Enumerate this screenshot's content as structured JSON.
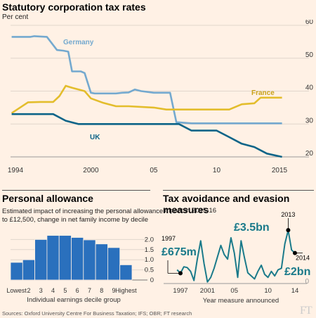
{
  "top": {
    "title": "Statutory corporation tax rates",
    "unit": "Per cent",
    "chart_data": {
      "type": "line",
      "title": "Statutory corporation tax rates",
      "ylabel": "Per cent",
      "ylim": [
        20,
        60
      ],
      "yticks": [
        20,
        30,
        40,
        50,
        60
      ],
      "xticks": [
        "1994",
        "2000",
        "05",
        "10",
        "2015"
      ],
      "grid": true,
      "colors": {
        "Germany": "#74a9cf",
        "France": "#e3bd2c",
        "UK": "#0c6488"
      },
      "series": [
        {
          "name": "Germany",
          "x": [
            1993.7,
            1994.6,
            1995.2,
            1995.5,
            1996.5,
            1997.3,
            1997.8,
            1998.2,
            1998.5,
            1999.2,
            1999.5,
            2000.0,
            2000.3,
            2001.0,
            2001.5,
            2002.0,
            2002.5,
            2003.0,
            2003.5,
            2004.0,
            2005.0,
            2006.0,
            2006.3,
            2006.8,
            2007.0,
            2008.0,
            2010.0,
            2012.0,
            2015.2
          ],
          "values": [
            56.5,
            56.5,
            56.5,
            56.7,
            56.5,
            52.5,
            52.3,
            52.0,
            46.0,
            46.0,
            45.5,
            39.5,
            39.3,
            39.3,
            39.3,
            39.3,
            39.5,
            39.6,
            40.5,
            40.0,
            39.5,
            39.5,
            39.5,
            30.5,
            30.5,
            30.2,
            30.2,
            30.2,
            30.2
          ]
        },
        {
          "name": "France",
          "x": [
            1993.7,
            1995.0,
            1996.0,
            1997.0,
            1997.5,
            1998.0,
            1998.5,
            1999.5,
            2000.0,
            2001.0,
            2002.0,
            2003.0,
            2005.0,
            2006.0,
            2008.0,
            2010.0,
            2011.0,
            2012.0,
            2013.0,
            2013.5,
            2014.0,
            2015.2
          ],
          "values": [
            33.3,
            36.6,
            36.7,
            36.7,
            38.5,
            41.6,
            41.0,
            40.0,
            37.8,
            36.4,
            35.4,
            35.4,
            35.0,
            34.4,
            34.4,
            34.4,
            34.4,
            36.0,
            36.3,
            38.0,
            38.0,
            38.0
          ],
          "label_value": "France"
        },
        {
          "name": "UK",
          "x": [
            1993.7,
            1995.0,
            1996.0,
            1997.0,
            1998.0,
            1999.0,
            2000.0,
            2005.0,
            2007.0,
            2008.0,
            2009.0,
            2010.0,
            2011.0,
            2012.0,
            2013.0,
            2014.0,
            2015.2
          ],
          "values": [
            33.0,
            33.0,
            33.0,
            33.0,
            31.0,
            30.0,
            30.0,
            30.0,
            30.0,
            28.0,
            28.0,
            28.0,
            26.0,
            24.0,
            23.0,
            21.0,
            20.0
          ]
        }
      ]
    }
  },
  "personal": {
    "title": "Personal allowance",
    "desc1": "Estimated impact of increasing the personal allowance",
    "desc2": "to £12,500, change in net family income by decile",
    "xlabel": "Individual earnings decile group",
    "chart_data": {
      "type": "bar",
      "title": "Personal allowance",
      "xlabel": "Individual earnings decile group",
      "categories": [
        "Lowest",
        "2",
        "3",
        "4",
        "5",
        "6",
        "7",
        "8",
        "9",
        "Highest"
      ],
      "values": [
        0.87,
        1.0,
        2.0,
        2.2,
        2.2,
        2.1,
        1.98,
        1.78,
        1.6,
        0.75
      ],
      "ylim": [
        0,
        2.5
      ],
      "yticks": [
        "0",
        "0.5",
        "1.0",
        "1.5",
        "2.0"
      ],
      "color": "#2a70bd",
      "grid": true
    }
  },
  "avoid": {
    "title": "Tax avoidance and evasion measures",
    "desc": "Impact in 2015-16",
    "xlabel": "Year measure announced",
    "ann": {
      "y1997": "1997",
      "v1997": "£675m",
      "y2013": "2013",
      "v2013": "£3.5bn",
      "y2014": "2014",
      "v2014": "£2bn"
    },
    "chart_data": {
      "type": "line",
      "title": "Tax avoidance and evasion measures",
      "xlabel": "Year measure announced",
      "xticks": [
        "1997",
        "2001",
        "05",
        "10",
        "14"
      ],
      "yticks": [
        "0"
      ],
      "x": [
        1996.5,
        1997,
        1997.5,
        1998.0,
        1998.5,
        1999.0,
        1999.5,
        2000.0,
        2000.5,
        2001.0,
        2001.5,
        2002.0,
        2003.0,
        2003.5,
        2004.0,
        2004.5,
        2005.0,
        2005.5,
        2006.0,
        2006.5,
        2007.0,
        2008.0,
        2008.5,
        2009.0,
        2009.5,
        2010.0,
        2010.5,
        2011.0,
        2011.5,
        2012.0,
        2012.5,
        2013.0,
        2013.5,
        2014.0
      ],
      "values": [
        0.9,
        0.675,
        1.1,
        1.05,
        0.8,
        0.2,
        1.6,
        2.8,
        1.3,
        0.1,
        0.4,
        1.0,
        2.5,
        1.9,
        1.6,
        3.0,
        2.0,
        0.4,
        2.8,
        1.7,
        0.7,
        0.3,
        0.8,
        1.2,
        0.6,
        0.4,
        0.8,
        0.5,
        0.9,
        1.0,
        2.6,
        3.5,
        2.2,
        2.0
      ],
      "ylim": [
        0,
        4.2
      ],
      "color": "#1a7a8a"
    }
  },
  "footer": "Sources: Oxford University Centre For Business Taxation; IFS; OBR; FT research",
  "logo": "FT"
}
